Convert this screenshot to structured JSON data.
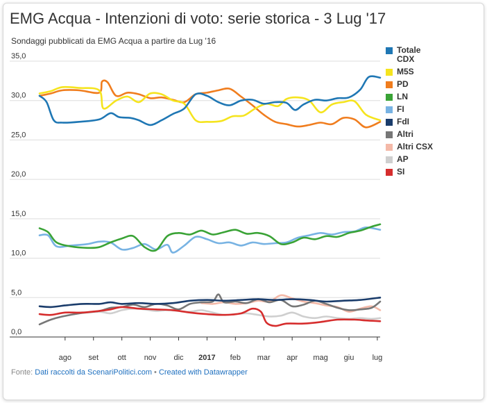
{
  "chart_data": {
    "type": "line",
    "title": "EMG Acqua - Intenzioni di voto: serie storica - 3 Lug '17",
    "subtitle": "Sondaggi pubblicati da EMG Acqua a partire da Lug '16",
    "ylim": [
      0,
      35
    ],
    "y_ticks": [
      "35,0",
      "30,0",
      "25,0",
      "20,0",
      "15,0",
      "10,0",
      "5,0",
      "0,0"
    ],
    "y_tick_values": [
      35,
      30,
      25,
      20,
      15,
      10,
      5,
      0
    ],
    "x_tick_labels": [
      "ago",
      "set",
      "ott",
      "nov",
      "dic",
      "2017",
      "feb",
      "mar",
      "apr",
      "mag",
      "giu",
      "lug"
    ],
    "x_tick_positions": [
      1,
      2,
      3,
      4,
      5,
      6,
      7,
      8,
      9,
      10,
      11,
      12
    ],
    "x_range": [
      0.1,
      12.1
    ],
    "series": [
      {
        "name": "Totale CDX",
        "color": "#1f77b4",
        "legend": [
          "Totale",
          "CDX"
        ],
        "points": [
          [
            0.1,
            30.6
          ],
          [
            0.35,
            29.8
          ],
          [
            0.6,
            27.5
          ],
          [
            0.9,
            27.2
          ],
          [
            1.5,
            27.3
          ],
          [
            2.2,
            27.6
          ],
          [
            2.6,
            28.4
          ],
          [
            2.9,
            27.9
          ],
          [
            3.3,
            27.8
          ],
          [
            3.6,
            27.5
          ],
          [
            4.0,
            26.9
          ],
          [
            4.4,
            27.5
          ],
          [
            4.8,
            28.3
          ],
          [
            5.2,
            29.0
          ],
          [
            5.6,
            30.8
          ],
          [
            6.0,
            30.6
          ],
          [
            6.4,
            29.8
          ],
          [
            6.8,
            29.4
          ],
          [
            7.2,
            30.0
          ],
          [
            7.6,
            30.1
          ],
          [
            8.0,
            29.6
          ],
          [
            8.4,
            29.8
          ],
          [
            8.8,
            29.7
          ],
          [
            9.1,
            28.8
          ],
          [
            9.4,
            29.5
          ],
          [
            9.8,
            30.1
          ],
          [
            10.2,
            30.0
          ],
          [
            10.6,
            30.3
          ],
          [
            11.0,
            30.4
          ],
          [
            11.4,
            31.4
          ],
          [
            11.7,
            33.0
          ],
          [
            12.1,
            32.9
          ]
        ]
      },
      {
        "name": "M5S",
        "color": "#f5e41e",
        "legend": [
          "M5S"
        ],
        "points": [
          [
            0.1,
            30.9
          ],
          [
            0.5,
            31.2
          ],
          [
            0.9,
            31.7
          ],
          [
            1.5,
            31.6
          ],
          [
            2.2,
            31.3
          ],
          [
            2.35,
            29.0
          ],
          [
            2.8,
            30.0
          ],
          [
            3.2,
            30.5
          ],
          [
            3.6,
            29.8
          ],
          [
            4.0,
            30.9
          ],
          [
            4.4,
            30.8
          ],
          [
            4.8,
            30.0
          ],
          [
            5.2,
            29.6
          ],
          [
            5.6,
            27.5
          ],
          [
            6.0,
            27.3
          ],
          [
            6.5,
            27.4
          ],
          [
            6.9,
            28.0
          ],
          [
            7.3,
            28.1
          ],
          [
            7.7,
            29.0
          ],
          [
            8.1,
            29.6
          ],
          [
            8.5,
            29.3
          ],
          [
            8.8,
            30.2
          ],
          [
            9.2,
            30.4
          ],
          [
            9.6,
            30.0
          ],
          [
            10.0,
            28.5
          ],
          [
            10.4,
            29.5
          ],
          [
            10.8,
            29.8
          ],
          [
            11.2,
            29.9
          ],
          [
            11.6,
            28.2
          ],
          [
            12.1,
            27.5
          ]
        ]
      },
      {
        "name": "PD",
        "color": "#f07d1e",
        "legend": [
          "PD"
        ],
        "points": [
          [
            0.1,
            30.6
          ],
          [
            0.5,
            30.9
          ],
          [
            0.9,
            31.3
          ],
          [
            1.5,
            31.3
          ],
          [
            2.2,
            31.0
          ],
          [
            2.3,
            32.4
          ],
          [
            2.5,
            32.3
          ],
          [
            2.8,
            30.6
          ],
          [
            3.2,
            31.0
          ],
          [
            3.6,
            30.8
          ],
          [
            4.0,
            30.3
          ],
          [
            4.4,
            30.4
          ],
          [
            4.8,
            30.1
          ],
          [
            5.2,
            29.8
          ],
          [
            5.6,
            30.8
          ],
          [
            6.0,
            31.0
          ],
          [
            6.4,
            31.3
          ],
          [
            6.8,
            31.5
          ],
          [
            7.2,
            30.5
          ],
          [
            7.6,
            29.4
          ],
          [
            8.0,
            28.2
          ],
          [
            8.4,
            27.3
          ],
          [
            8.8,
            27.0
          ],
          [
            9.2,
            26.7
          ],
          [
            9.6,
            26.9
          ],
          [
            10.0,
            27.2
          ],
          [
            10.4,
            27.0
          ],
          [
            10.8,
            27.8
          ],
          [
            11.2,
            27.6
          ],
          [
            11.6,
            26.6
          ],
          [
            12.1,
            27.3
          ]
        ]
      },
      {
        "name": "LN",
        "color": "#3aa336",
        "legend": [
          "LN"
        ],
        "points": [
          [
            0.1,
            13.8
          ],
          [
            0.4,
            13.3
          ],
          [
            0.7,
            12.0
          ],
          [
            1.2,
            11.5
          ],
          [
            1.8,
            11.3
          ],
          [
            2.2,
            11.4
          ],
          [
            2.6,
            12.0
          ],
          [
            3.0,
            12.5
          ],
          [
            3.4,
            12.8
          ],
          [
            3.8,
            11.4
          ],
          [
            4.2,
            11.0
          ],
          [
            4.6,
            12.8
          ],
          [
            5.0,
            13.2
          ],
          [
            5.4,
            13.0
          ],
          [
            5.8,
            13.5
          ],
          [
            6.2,
            13.0
          ],
          [
            6.6,
            13.3
          ],
          [
            7.0,
            13.6
          ],
          [
            7.4,
            13.1
          ],
          [
            7.8,
            13.2
          ],
          [
            8.2,
            12.8
          ],
          [
            8.6,
            11.8
          ],
          [
            9.0,
            12.0
          ],
          [
            9.4,
            12.6
          ],
          [
            9.8,
            12.4
          ],
          [
            10.2,
            12.8
          ],
          [
            10.6,
            12.7
          ],
          [
            11.0,
            13.2
          ],
          [
            11.4,
            13.5
          ],
          [
            11.8,
            14.0
          ],
          [
            12.1,
            14.3
          ]
        ]
      },
      {
        "name": "FI",
        "color": "#78b3e3",
        "legend": [
          "FI"
        ],
        "points": [
          [
            0.1,
            12.9
          ],
          [
            0.4,
            12.9
          ],
          [
            0.7,
            11.5
          ],
          [
            1.2,
            11.6
          ],
          [
            1.8,
            11.8
          ],
          [
            2.2,
            12.1
          ],
          [
            2.6,
            12.0
          ],
          [
            3.0,
            11.1
          ],
          [
            3.4,
            11.3
          ],
          [
            3.8,
            11.8
          ],
          [
            4.2,
            11.1
          ],
          [
            4.6,
            11.7
          ],
          [
            4.8,
            10.7
          ],
          [
            5.2,
            11.6
          ],
          [
            5.6,
            12.7
          ],
          [
            6.0,
            12.4
          ],
          [
            6.4,
            11.9
          ],
          [
            6.8,
            12.0
          ],
          [
            7.2,
            11.6
          ],
          [
            7.6,
            12.0
          ],
          [
            8.0,
            11.8
          ],
          [
            8.4,
            11.9
          ],
          [
            8.8,
            12.0
          ],
          [
            9.2,
            12.6
          ],
          [
            9.6,
            12.9
          ],
          [
            10.0,
            13.2
          ],
          [
            10.4,
            13.0
          ],
          [
            10.8,
            13.3
          ],
          [
            11.2,
            13.4
          ],
          [
            11.6,
            13.9
          ],
          [
            12.1,
            13.6
          ]
        ]
      },
      {
        "name": "FdI",
        "color": "#1a3c6b",
        "legend": [
          "FdI"
        ],
        "points": [
          [
            0.1,
            3.9
          ],
          [
            0.5,
            3.8
          ],
          [
            1.0,
            4.0
          ],
          [
            1.6,
            4.2
          ],
          [
            2.2,
            4.2
          ],
          [
            2.6,
            4.4
          ],
          [
            3.0,
            4.2
          ],
          [
            3.6,
            4.3
          ],
          [
            4.2,
            4.2
          ],
          [
            4.8,
            4.3
          ],
          [
            5.4,
            4.6
          ],
          [
            6.0,
            4.7
          ],
          [
            6.6,
            4.6
          ],
          [
            7.2,
            4.7
          ],
          [
            7.8,
            4.8
          ],
          [
            8.4,
            4.7
          ],
          [
            9.0,
            4.8
          ],
          [
            9.6,
            4.7
          ],
          [
            10.2,
            4.5
          ],
          [
            10.8,
            4.6
          ],
          [
            11.4,
            4.7
          ],
          [
            12.1,
            5.0
          ]
        ]
      },
      {
        "name": "Altri",
        "color": "#777777",
        "legend": [
          "Altri"
        ],
        "points": [
          [
            0.1,
            1.6
          ],
          [
            0.5,
            2.2
          ],
          [
            0.9,
            2.6
          ],
          [
            1.5,
            3.0
          ],
          [
            2.2,
            3.3
          ],
          [
            2.6,
            3.7
          ],
          [
            3.0,
            3.8
          ],
          [
            3.4,
            4.1
          ],
          [
            3.8,
            3.8
          ],
          [
            4.2,
            4.2
          ],
          [
            4.6,
            4.0
          ],
          [
            5.0,
            3.5
          ],
          [
            5.4,
            4.2
          ],
          [
            5.8,
            4.4
          ],
          [
            6.2,
            4.5
          ],
          [
            6.4,
            5.4
          ],
          [
            6.6,
            4.4
          ],
          [
            7.0,
            4.5
          ],
          [
            7.4,
            4.3
          ],
          [
            7.8,
            4.8
          ],
          [
            8.2,
            4.4
          ],
          [
            8.6,
            4.7
          ],
          [
            9.0,
            3.9
          ],
          [
            9.4,
            4.1
          ],
          [
            9.8,
            4.6
          ],
          [
            10.2,
            4.2
          ],
          [
            10.6,
            3.7
          ],
          [
            11.0,
            3.4
          ],
          [
            11.4,
            3.5
          ],
          [
            11.8,
            3.7
          ],
          [
            12.1,
            4.5
          ]
        ]
      },
      {
        "name": "Altri CSX",
        "color": "#f4b9a8",
        "legend": [
          "Altri CSX"
        ],
        "points": [
          [
            5.8,
            4.3
          ],
          [
            6.2,
            4.2
          ],
          [
            6.6,
            4.4
          ],
          [
            7.0,
            4.2
          ],
          [
            7.4,
            4.3
          ],
          [
            7.8,
            4.6
          ],
          [
            8.2,
            4.5
          ],
          [
            8.6,
            5.3
          ],
          [
            9.0,
            4.9
          ],
          [
            9.4,
            4.5
          ],
          [
            9.8,
            4.3
          ],
          [
            10.2,
            4.0
          ],
          [
            10.6,
            3.8
          ],
          [
            11.0,
            3.2
          ],
          [
            11.4,
            3.6
          ],
          [
            11.8,
            3.9
          ],
          [
            12.1,
            3.4
          ]
        ]
      },
      {
        "name": "AP",
        "color": "#cfcfcf",
        "legend": [
          "AP"
        ],
        "points": [
          [
            1.5,
            3.1
          ],
          [
            2.2,
            3.2
          ],
          [
            2.6,
            3.0
          ],
          [
            3.0,
            3.4
          ],
          [
            3.4,
            3.6
          ],
          [
            3.8,
            3.5
          ],
          [
            4.2,
            3.3
          ],
          [
            4.6,
            3.4
          ],
          [
            5.0,
            3.3
          ],
          [
            5.4,
            3.2
          ],
          [
            5.8,
            3.4
          ],
          [
            6.2,
            3.1
          ],
          [
            6.6,
            2.8
          ],
          [
            7.0,
            2.9
          ],
          [
            7.4,
            3.0
          ],
          [
            7.8,
            2.8
          ],
          [
            8.2,
            2.6
          ],
          [
            8.6,
            2.7
          ],
          [
            9.0,
            3.1
          ],
          [
            9.4,
            2.6
          ],
          [
            9.8,
            2.4
          ],
          [
            10.2,
            2.6
          ],
          [
            10.6,
            2.4
          ],
          [
            11.0,
            2.3
          ],
          [
            11.4,
            2.4
          ],
          [
            11.8,
            2.3
          ],
          [
            12.1,
            2.4
          ]
        ]
      },
      {
        "name": "SI",
        "color": "#d62d2d",
        "legend": [
          "SI"
        ],
        "points": [
          [
            0.1,
            2.9
          ],
          [
            0.5,
            2.8
          ],
          [
            1.0,
            3.1
          ],
          [
            1.6,
            3.1
          ],
          [
            2.2,
            3.3
          ],
          [
            2.6,
            3.5
          ],
          [
            3.0,
            3.8
          ],
          [
            3.6,
            3.6
          ],
          [
            4.2,
            3.5
          ],
          [
            4.8,
            3.4
          ],
          [
            5.4,
            3.1
          ],
          [
            6.0,
            2.9
          ],
          [
            6.6,
            2.8
          ],
          [
            7.2,
            3.0
          ],
          [
            7.6,
            3.6
          ],
          [
            7.9,
            3.2
          ],
          [
            8.1,
            1.8
          ],
          [
            8.4,
            1.4
          ],
          [
            8.8,
            1.7
          ],
          [
            9.4,
            1.7
          ],
          [
            10.0,
            1.9
          ],
          [
            10.6,
            2.2
          ],
          [
            11.2,
            2.2
          ],
          [
            11.6,
            2.1
          ],
          [
            12.1,
            2.0
          ]
        ]
      }
    ]
  },
  "footer": {
    "source_prefix": "Fonte: ",
    "source_link": "Dati raccolti da ScenariPolitici.com",
    "separator": " • ",
    "credit_link": "Created with Datawrapper"
  }
}
